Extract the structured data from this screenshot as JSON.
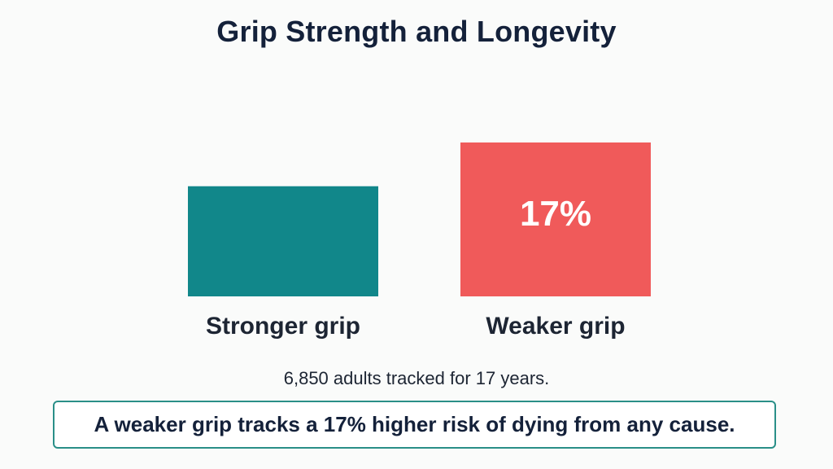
{
  "colors": {
    "background": "#fafbfa",
    "title": "#14213a",
    "stronger_bar": "#11878a",
    "weaker_bar": "#f05a5a",
    "callout_border": "#2a8f88"
  },
  "title": "Grip Strength and Longevity",
  "subtitle": "6,850 adults tracked for 17 years.",
  "callout": "A weaker grip tracks a 17% higher risk of dying from any cause.",
  "chart_data": {
    "type": "bar",
    "title": "Grip Strength and Longevity",
    "categories": [
      "Stronger grip",
      "Weaker grip"
    ],
    "values": [
      100,
      117
    ],
    "data_labels": [
      "",
      "17%"
    ],
    "bar_colors": [
      "#11878a",
      "#f05a5a"
    ],
    "xlabel": "",
    "ylabel": "",
    "grid": false,
    "legend": "none"
  }
}
